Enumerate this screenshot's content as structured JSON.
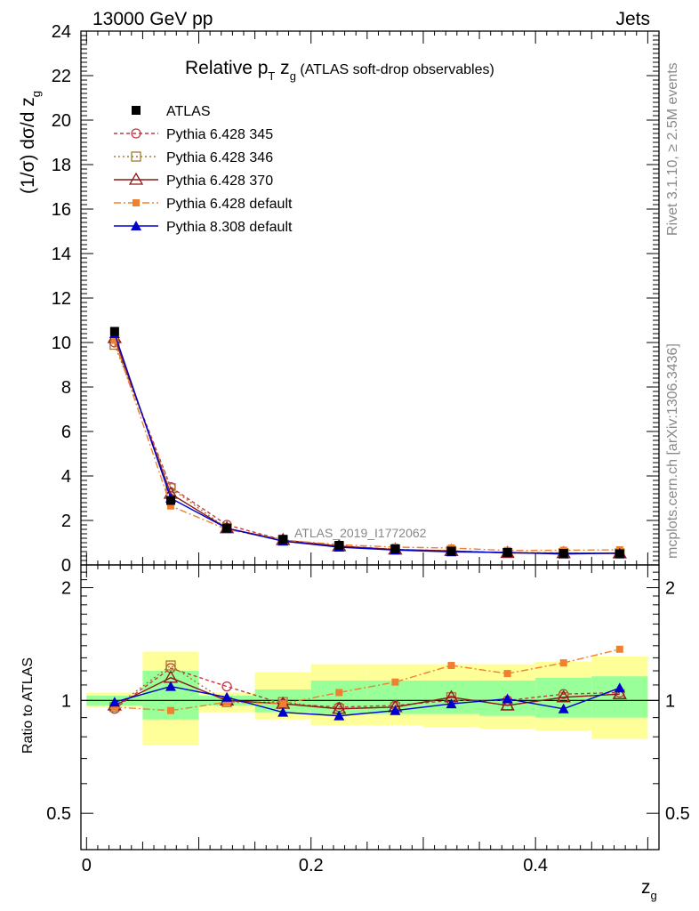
{
  "header": {
    "left": "13000 GeV pp",
    "right": "Jets"
  },
  "title": {
    "main": "Relative p",
    "sub_T": "T",
    "mid": " z",
    "sub_g": "g",
    "tail": " (ATLAS soft-drop observables)"
  },
  "side_labels": {
    "rivet": "Rivet 3.1.10, ≥ 2.5M events",
    "mcplots": "mcplots.cern.ch [arXiv:1306.3436]"
  },
  "watermark": "ATLAS_2019_I1772062",
  "axes": {
    "ylabel_main": "(1/σ) dσ/d z",
    "ylabel_main_sub": "g",
    "ylabel_ratio": "Ratio to ATLAS",
    "xlabel": "z",
    "xlabel_sub": "g",
    "main_yticks": [
      "0",
      "2",
      "4",
      "6",
      "8",
      "10",
      "12",
      "14",
      "16",
      "18",
      "20",
      "22",
      "24"
    ],
    "ratio_yticks": [
      "0.5",
      "1",
      "2"
    ],
    "xticks": [
      "0",
      "0.2",
      "0.4"
    ]
  },
  "legend": [
    {
      "label": "ATLAS",
      "color": "#000000"
    },
    {
      "label": "Pythia 6.428 345",
      "color": "#c0394b"
    },
    {
      "label": "Pythia 6.428 346",
      "color": "#a07a30"
    },
    {
      "label": "Pythia 6.428 370",
      "color": "#8b1a1a"
    },
    {
      "label": "Pythia 6.428 default",
      "color": "#f08030"
    },
    {
      "label": "Pythia 8.308 default",
      "color": "#0000cc"
    }
  ],
  "chart_data": [
    {
      "type": "line",
      "panel": "main",
      "xlim": [
        -0.005,
        0.51
      ],
      "ylim": [
        0,
        24
      ],
      "x": [
        0.025,
        0.075,
        0.125,
        0.175,
        0.225,
        0.275,
        0.325,
        0.375,
        0.425,
        0.475
      ],
      "data": {
        "name": "ATLAS",
        "values": [
          10.5,
          2.9,
          1.65,
          1.15,
          0.88,
          0.72,
          0.62,
          0.56,
          0.52,
          0.5
        ]
      },
      "series": [
        {
          "name": "Pythia 6.428 345",
          "values": [
            10.0,
            3.5,
            1.8,
            1.12,
            0.85,
            0.7,
            0.63,
            0.55,
            0.54,
            0.52
          ]
        },
        {
          "name": "Pythia 6.428 346",
          "values": [
            9.9,
            3.45,
            1.65,
            1.12,
            0.84,
            0.7,
            0.63,
            0.54,
            0.53,
            0.52
          ]
        },
        {
          "name": "Pythia 6.428 370",
          "values": [
            10.2,
            3.2,
            1.65,
            1.12,
            0.84,
            0.69,
            0.63,
            0.54,
            0.53,
            0.52
          ]
        },
        {
          "name": "Pythia 6.428 default",
          "values": [
            10.1,
            2.65,
            1.6,
            1.12,
            0.91,
            0.8,
            0.76,
            0.65,
            0.66,
            0.68
          ]
        },
        {
          "name": "Pythia 8.308 default",
          "values": [
            10.4,
            3.0,
            1.65,
            1.07,
            0.8,
            0.67,
            0.59,
            0.56,
            0.49,
            0.53
          ]
        }
      ]
    },
    {
      "type": "line",
      "panel": "ratio",
      "ylabel": "Ratio to ATLAS",
      "xlabel": "z_g",
      "ylim": [
        0.4,
        2.3
      ],
      "log_y": true,
      "x": [
        0.025,
        0.075,
        0.125,
        0.175,
        0.225,
        0.275,
        0.325,
        0.375,
        0.425,
        0.475
      ],
      "bands": {
        "bins": [
          [
            0.0,
            0.05
          ],
          [
            0.05,
            0.1
          ],
          [
            0.1,
            0.15
          ],
          [
            0.15,
            0.2
          ],
          [
            0.2,
            0.25
          ],
          [
            0.25,
            0.3
          ],
          [
            0.3,
            0.35
          ],
          [
            0.35,
            0.4
          ],
          [
            0.4,
            0.45
          ],
          [
            0.45,
            0.5
          ]
        ],
        "yellow": [
          [
            0.96,
            1.05
          ],
          [
            0.76,
            1.35
          ],
          [
            0.93,
            1.05
          ],
          [
            0.89,
            1.19
          ],
          [
            0.86,
            1.25
          ],
          [
            0.86,
            1.25
          ],
          [
            0.85,
            1.25
          ],
          [
            0.84,
            1.25
          ],
          [
            0.83,
            1.27
          ],
          [
            0.79,
            1.31
          ]
        ],
        "green": [
          [
            0.97,
            1.03
          ],
          [
            0.89,
            1.2
          ],
          [
            0.97,
            1.03
          ],
          [
            0.93,
            1.07
          ],
          [
            0.92,
            1.13
          ],
          [
            0.92,
            1.13
          ],
          [
            0.92,
            1.13
          ],
          [
            0.91,
            1.13
          ],
          [
            0.9,
            1.15
          ],
          [
            0.9,
            1.16
          ]
        ]
      },
      "series": [
        {
          "name": "Pythia 6.428 345",
          "values": [
            0.95,
            1.22,
            1.09,
            0.98,
            0.96,
            0.97,
            1.0,
            1.0,
            1.04,
            1.05
          ]
        },
        {
          "name": "Pythia 6.428 346",
          "values": [
            0.96,
            1.24,
            0.99,
            0.99,
            0.95,
            0.96,
            1.02,
            0.97,
            1.02,
            1.04
          ]
        },
        {
          "name": "Pythia 6.428 370",
          "values": [
            0.97,
            1.15,
            1.0,
            0.98,
            0.95,
            0.96,
            1.02,
            0.97,
            1.02,
            1.04
          ]
        },
        {
          "name": "Pythia 6.428 default",
          "values": [
            0.96,
            0.94,
            0.99,
            0.98,
            1.05,
            1.12,
            1.24,
            1.18,
            1.26,
            1.37
          ]
        },
        {
          "name": "Pythia 8.308 default",
          "values": [
            0.99,
            1.09,
            1.02,
            0.93,
            0.91,
            0.94,
            0.98,
            1.01,
            0.95,
            1.08
          ]
        }
      ]
    }
  ]
}
